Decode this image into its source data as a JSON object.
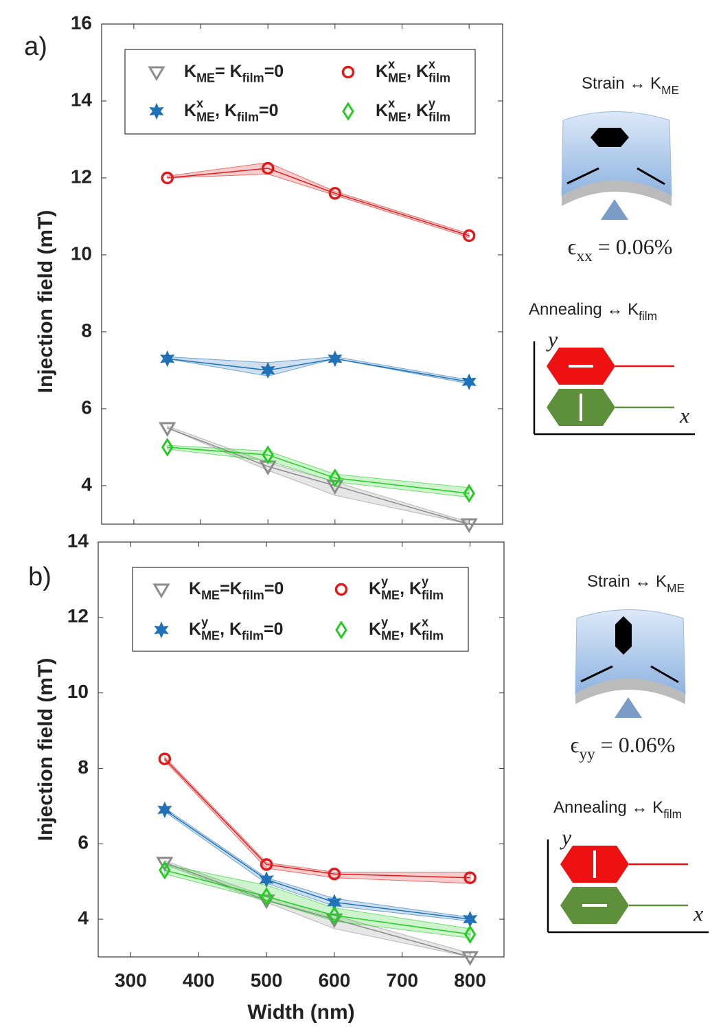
{
  "chart_data": [
    {
      "type": "line",
      "panel_label": "a)",
      "ylabel": "Injection field (mT)",
      "xlim": [
        252,
        850
      ],
      "xticks": [
        300,
        400,
        500,
        600,
        700,
        800
      ],
      "ylim": [
        3,
        16
      ],
      "yticks": [
        4,
        6,
        8,
        10,
        12,
        14,
        16
      ],
      "x": [
        350,
        500,
        600,
        800
      ],
      "series": [
        {
          "name": "K_ME= K_film=0",
          "color": "#8c8c8c",
          "marker": "triangle-down",
          "values": [
            5.5,
            4.5,
            4.0,
            3.0
          ],
          "lower": [
            5.5,
            4.4,
            3.75,
            3.0
          ],
          "upper": [
            5.55,
            4.6,
            4.1,
            3.05
          ]
        },
        {
          "name": "K^x_ME, K_film=0",
          "color": "#1f72b8",
          "marker": "star",
          "values": [
            7.3,
            7.0,
            7.3,
            6.7
          ],
          "lower": [
            7.3,
            6.85,
            7.3,
            6.65
          ],
          "upper": [
            7.35,
            7.2,
            7.35,
            6.75
          ]
        },
        {
          "name": "K^x_ME, K^x_film",
          "color": "#e01b1b",
          "marker": "circle",
          "values": [
            12.0,
            12.25,
            11.6,
            10.5
          ],
          "lower": [
            12.0,
            12.1,
            11.55,
            10.45
          ],
          "upper": [
            12.05,
            12.4,
            11.65,
            10.55
          ]
        },
        {
          "name": "K^x_ME, K^y_film",
          "color": "#22cc22",
          "marker": "diamond",
          "values": [
            5.0,
            4.8,
            4.2,
            3.8
          ],
          "lower": [
            4.95,
            4.65,
            4.1,
            3.7
          ],
          "upper": [
            5.05,
            4.9,
            4.3,
            3.95
          ]
        }
      ],
      "diagram": {
        "strain_label": "Strain ↔ K_ME",
        "strain_value": "ϵ_xx = 0.06%",
        "annealing_label": "Annealing ↔ K_film",
        "axis_y": "y",
        "axis_x": "x"
      }
    },
    {
      "type": "line",
      "panel_label": "b)",
      "ylabel": "Injection field (mT)",
      "xlabel": "Width (nm)",
      "xlim": [
        252,
        850
      ],
      "xticks": [
        300,
        400,
        500,
        600,
        700,
        800
      ],
      "ylim": [
        3,
        14
      ],
      "yticks": [
        4,
        6,
        8,
        10,
        12,
        14
      ],
      "x": [
        350,
        500,
        600,
        800
      ],
      "series": [
        {
          "name": "K_ME=K_film=0",
          "color": "#8c8c8c",
          "marker": "triangle-down",
          "values": [
            5.5,
            4.5,
            4.0,
            3.0
          ],
          "lower": [
            5.45,
            4.45,
            3.75,
            3.0
          ],
          "upper": [
            5.55,
            4.6,
            4.1,
            3.1
          ]
        },
        {
          "name": "K^y_ME, K_film=0",
          "color": "#1f72b8",
          "marker": "star",
          "values": [
            6.9,
            5.05,
            4.45,
            4.0
          ],
          "lower": [
            6.85,
            4.95,
            4.35,
            3.95
          ],
          "upper": [
            6.95,
            5.1,
            4.55,
            4.05
          ]
        },
        {
          "name": "K^y_ME, K^y_film",
          "color": "#e01b1b",
          "marker": "circle",
          "values": [
            8.25,
            5.45,
            5.2,
            5.1
          ],
          "lower": [
            8.2,
            5.35,
            5.1,
            4.95
          ],
          "upper": [
            8.3,
            5.5,
            5.25,
            5.25
          ]
        },
        {
          "name": "K^y_ME, K^x_film",
          "color": "#22cc22",
          "marker": "diamond",
          "values": [
            5.3,
            4.6,
            4.1,
            3.6
          ],
          "lower": [
            5.2,
            4.5,
            3.95,
            3.5
          ],
          "upper": [
            5.45,
            4.9,
            4.3,
            3.75
          ]
        }
      ],
      "diagram": {
        "strain_label": "Strain ↔ K_ME",
        "strain_value": "ϵ_yy = 0.06%",
        "annealing_label": "Annealing ↔ K_film",
        "axis_y": "y",
        "axis_x": "x"
      }
    }
  ]
}
